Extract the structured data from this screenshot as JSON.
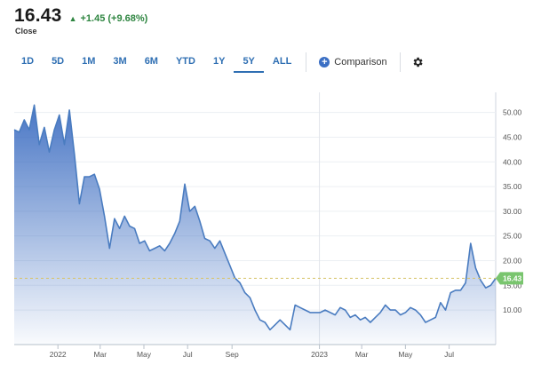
{
  "quote": {
    "price": "16.43",
    "change": "+1.45 (+9.68%)",
    "label": "Close"
  },
  "ranges": [
    "1D",
    "5D",
    "1M",
    "3M",
    "6M",
    "YTD",
    "1Y",
    "5Y",
    "ALL"
  ],
  "active_range": "5Y",
  "comparison_label": "Comparison",
  "colors": {
    "line": "#4a7cc0",
    "area_top": "#3f6fc2",
    "accent": "#2f6fb3",
    "up": "#2e8540",
    "last_price": "#79c56e"
  },
  "chart_data": {
    "type": "area",
    "title": "",
    "xlabel": "",
    "ylabel": "",
    "ylim": [
      3,
      53
    ],
    "y_ticks": [
      "10.00",
      "15.00",
      "20.00",
      "25.00",
      "30.00",
      "35.00",
      "40.00",
      "45.00",
      "50.00"
    ],
    "x_ticks": [
      "2022",
      "Mar",
      "May",
      "Jul",
      "Sep",
      "2023",
      "Mar",
      "May",
      "Jul"
    ],
    "last_value_label": "16.43",
    "grid": true,
    "series": [
      {
        "x": [
          "2021-11-01",
          "2021-11-08",
          "2021-11-15",
          "2021-11-22",
          "2021-11-29",
          "2021-12-06",
          "2021-12-13",
          "2021-12-20",
          "2021-12-27",
          "2022-01-03",
          "2022-01-10",
          "2022-01-17",
          "2022-01-24",
          "2022-01-31",
          "2022-02-07",
          "2022-02-14",
          "2022-02-21",
          "2022-02-28",
          "2022-03-07",
          "2022-03-14",
          "2022-03-21",
          "2022-03-28",
          "2022-04-04",
          "2022-04-11",
          "2022-04-18",
          "2022-04-25",
          "2022-05-02",
          "2022-05-09",
          "2022-05-16",
          "2022-05-23",
          "2022-05-30",
          "2022-06-06",
          "2022-06-13",
          "2022-06-20",
          "2022-06-27",
          "2022-07-04",
          "2022-07-11",
          "2022-07-18",
          "2022-07-25",
          "2022-08-01",
          "2022-08-08",
          "2022-08-15",
          "2022-08-22",
          "2022-08-29",
          "2022-09-05",
          "2022-09-12",
          "2022-09-19",
          "2022-09-26",
          "2022-10-03",
          "2022-10-10",
          "2022-10-17",
          "2022-10-24",
          "2022-10-31",
          "2022-11-07",
          "2022-11-14",
          "2022-11-21",
          "2022-11-28",
          "2022-12-05",
          "2022-12-12",
          "2022-12-19",
          "2022-12-26",
          "2023-01-02",
          "2023-01-09",
          "2023-01-16",
          "2023-01-23",
          "2023-01-30",
          "2023-02-06",
          "2023-02-13",
          "2023-02-20",
          "2023-02-27",
          "2023-03-06",
          "2023-03-13",
          "2023-03-20",
          "2023-03-27",
          "2023-04-03",
          "2023-04-10",
          "2023-04-17",
          "2023-04-24",
          "2023-05-01",
          "2023-05-08",
          "2023-05-15",
          "2023-05-22",
          "2023-05-29",
          "2023-06-05",
          "2023-06-12",
          "2023-06-19",
          "2023-06-26",
          "2023-07-03",
          "2023-07-10",
          "2023-07-17",
          "2023-07-24",
          "2023-07-31",
          "2023-08-07",
          "2023-08-14",
          "2023-08-21",
          "2023-08-28",
          "2023-09-04"
        ],
        "values": [
          46.5,
          46.0,
          48.5,
          46.5,
          51.5,
          43.5,
          47.0,
          42.0,
          46.5,
          49.5,
          43.5,
          50.5,
          41.5,
          31.5,
          37.0,
          37.0,
          37.5,
          34.5,
          29.0,
          22.5,
          28.5,
          26.5,
          29.0,
          27.0,
          26.5,
          23.5,
          24.0,
          22.0,
          22.5,
          23.0,
          22.0,
          23.5,
          25.5,
          28.0,
          35.5,
          30.0,
          31.0,
          28.0,
          24.5,
          24.0,
          22.5,
          24.0,
          21.5,
          19.0,
          16.5,
          15.5,
          13.5,
          12.5,
          10.0,
          8.0,
          7.5,
          6.0,
          7.0,
          8.0,
          7.0,
          6.0,
          11.0,
          10.5,
          10.0,
          9.5,
          9.5,
          9.5,
          10.0,
          9.5,
          9.0,
          10.5,
          10.0,
          8.5,
          9.0,
          8.0,
          8.5,
          7.5,
          8.5,
          9.5,
          11.0,
          10.0,
          10.0,
          9.0,
          9.5,
          10.5,
          10.0,
          9.0,
          7.5,
          8.0,
          8.5,
          11.5,
          10.0,
          13.5,
          14.0,
          14.0,
          15.5,
          23.5,
          18.5,
          16.0,
          14.5,
          15.0,
          16.43
        ]
      }
    ]
  }
}
